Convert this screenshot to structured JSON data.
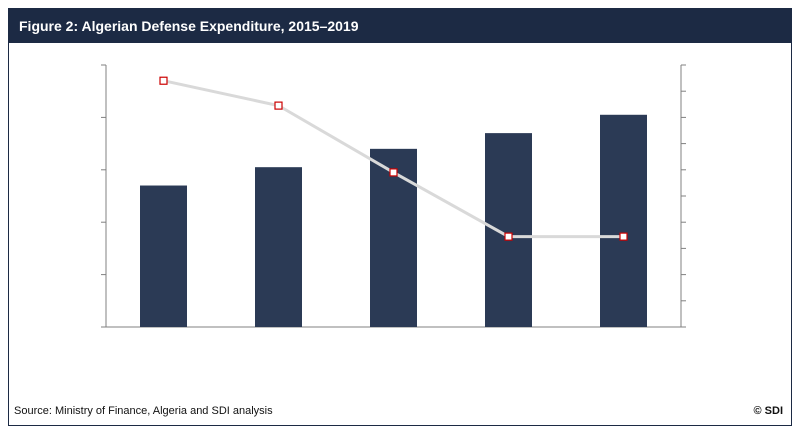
{
  "title": "Figure 2: Algerian Defense Expenditure, 2015–2019",
  "source": "Source: Ministry of Finance, Algeria and SDI analysis",
  "copyright": "© SDI",
  "colors": {
    "header_bg": "#1c2a44",
    "bar": "#2b3a55",
    "line": "#d9d9d9",
    "marker_edge": "#cc0000"
  },
  "chart_data": {
    "type": "bar",
    "categories": [
      "",
      "",
      "",
      "",
      ""
    ],
    "series": [
      {
        "kind": "bar",
        "axis": "left",
        "values": [
          2.7,
          3.05,
          3.4,
          3.7,
          4.05
        ]
      },
      {
        "kind": "line",
        "axis": "right",
        "values": [
          9.4,
          8.45,
          5.9,
          3.45,
          3.45
        ]
      }
    ],
    "left_ylim": [
      0,
      5
    ],
    "right_ylim": [
      0,
      10
    ],
    "left_ticks": 6,
    "right_ticks": 11
  }
}
